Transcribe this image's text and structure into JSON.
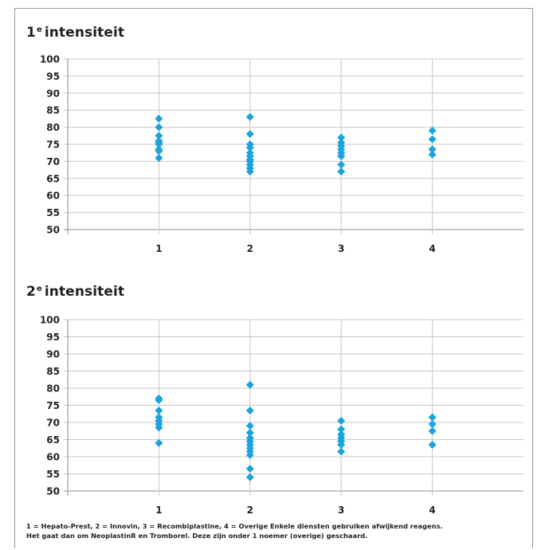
{
  "colors": {
    "marker": "#1ba3dd",
    "grid": "#c8c8c8",
    "axis": "#8c8c8c",
    "text": "#231f20",
    "frame": "#9a9a9a"
  },
  "panels": [
    {
      "title_main": "1",
      "title_sup": "e",
      "title_rest": "intensiteit"
    },
    {
      "title_main": "2",
      "title_sup": "e",
      "title_rest": "intensiteit"
    }
  ],
  "chart_data": [
    {
      "type": "scatter",
      "title": "1e intensiteit",
      "xlabel": "",
      "ylabel": "",
      "ylim": [
        50,
        100
      ],
      "xlim": [
        0,
        5
      ],
      "x_ticks": [
        "1",
        "2",
        "3",
        "4"
      ],
      "y_ticks": [
        50,
        55,
        60,
        65,
        70,
        75,
        80,
        85,
        90,
        95,
        100
      ],
      "grid": true,
      "marker": "diamond",
      "points": [
        {
          "x": 1,
          "y": 82.5
        },
        {
          "x": 1,
          "y": 80
        },
        {
          "x": 1,
          "y": 77.5
        },
        {
          "x": 1,
          "y": 76
        },
        {
          "x": 1,
          "y": 75.5
        },
        {
          "x": 1,
          "y": 75
        },
        {
          "x": 1,
          "y": 73.5
        },
        {
          "x": 1,
          "y": 73
        },
        {
          "x": 1,
          "y": 71
        },
        {
          "x": 2,
          "y": 83
        },
        {
          "x": 2,
          "y": 78
        },
        {
          "x": 2,
          "y": 75
        },
        {
          "x": 2,
          "y": 74
        },
        {
          "x": 2,
          "y": 72.5
        },
        {
          "x": 2,
          "y": 71.5
        },
        {
          "x": 2,
          "y": 70.5
        },
        {
          "x": 2,
          "y": 70
        },
        {
          "x": 2,
          "y": 69
        },
        {
          "x": 2,
          "y": 68
        },
        {
          "x": 2,
          "y": 67
        },
        {
          "x": 3,
          "y": 77
        },
        {
          "x": 3,
          "y": 75.5
        },
        {
          "x": 3,
          "y": 74.5
        },
        {
          "x": 3,
          "y": 73.5
        },
        {
          "x": 3,
          "y": 72.5
        },
        {
          "x": 3,
          "y": 71.5
        },
        {
          "x": 3,
          "y": 69
        },
        {
          "x": 3,
          "y": 67
        },
        {
          "x": 4,
          "y": 79
        },
        {
          "x": 4,
          "y": 76.5
        },
        {
          "x": 4,
          "y": 73.5
        },
        {
          "x": 4,
          "y": 72
        }
      ]
    },
    {
      "type": "scatter",
      "title": "2e intensiteit",
      "xlabel": "",
      "ylabel": "",
      "ylim": [
        50,
        100
      ],
      "xlim": [
        0,
        5
      ],
      "x_ticks": [
        "1",
        "2",
        "3",
        "4"
      ],
      "y_ticks": [
        50,
        55,
        60,
        65,
        70,
        75,
        80,
        85,
        90,
        95,
        100
      ],
      "grid": true,
      "marker": "diamond",
      "points": [
        {
          "x": 1,
          "y": 77
        },
        {
          "x": 1,
          "y": 76.5
        },
        {
          "x": 1,
          "y": 73.5
        },
        {
          "x": 1,
          "y": 71.5
        },
        {
          "x": 1,
          "y": 70.5
        },
        {
          "x": 1,
          "y": 69.5
        },
        {
          "x": 1,
          "y": 68.5
        },
        {
          "x": 1,
          "y": 64
        },
        {
          "x": 2,
          "y": 81
        },
        {
          "x": 2,
          "y": 73.5
        },
        {
          "x": 2,
          "y": 69
        },
        {
          "x": 2,
          "y": 67
        },
        {
          "x": 2,
          "y": 65.5
        },
        {
          "x": 2,
          "y": 64.5
        },
        {
          "x": 2,
          "y": 63.5
        },
        {
          "x": 2,
          "y": 62.5
        },
        {
          "x": 2,
          "y": 61.5
        },
        {
          "x": 2,
          "y": 60.5
        },
        {
          "x": 2,
          "y": 56.5
        },
        {
          "x": 2,
          "y": 54
        },
        {
          "x": 3,
          "y": 70.5
        },
        {
          "x": 3,
          "y": 68
        },
        {
          "x": 3,
          "y": 66.5
        },
        {
          "x": 3,
          "y": 65.5
        },
        {
          "x": 3,
          "y": 64.5
        },
        {
          "x": 3,
          "y": 63.5
        },
        {
          "x": 3,
          "y": 61.5
        },
        {
          "x": 4,
          "y": 71.5
        },
        {
          "x": 4,
          "y": 69.5
        },
        {
          "x": 4,
          "y": 67.5
        },
        {
          "x": 4,
          "y": 63.5
        }
      ]
    }
  ],
  "footnote": {
    "line1": "1 = Hepato-Prest, 2 = Innovin, 3 = Recombiplastine, 4 = Overige Enkele diensten gebruiken afwijkend reagens.",
    "line2": "Het gaat dan om NeoplastinR en Tromborel. Deze zijn onder 1 noemer (overige) geschaard."
  }
}
